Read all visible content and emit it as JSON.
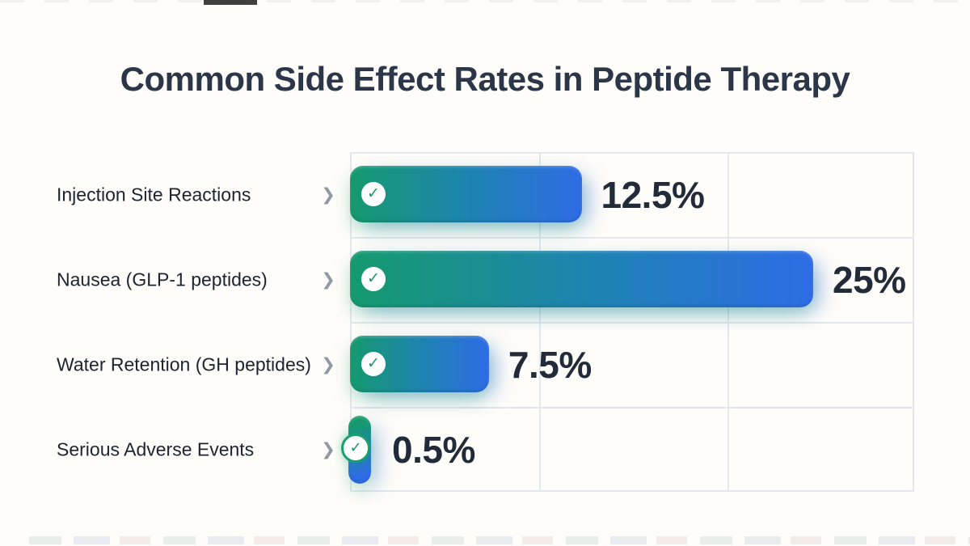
{
  "page": {
    "title": "Common Side Effect Rates in Peptide Therapy"
  },
  "colors": {
    "background": "#fffdf9",
    "title_text": "#2b3648",
    "category_text": "#1b2430",
    "value_text": "#212b39",
    "chevron": "#8f98a4",
    "grid_line": "#e4e8ec",
    "bar_gradient_start": "#159a6e",
    "bar_gradient_end": "#2e6ce6",
    "check_green": "#149a6e",
    "check_circle_bg": "#ffffff"
  },
  "icons": {
    "row_chevron": "❯",
    "bar_check": "✓"
  },
  "chart_data": {
    "type": "bar",
    "orientation": "horizontal",
    "title": "Common Side Effect Rates in Peptide Therapy",
    "categories": [
      "Injection Site Reactions",
      "Nausea (GLP-1 peptides)",
      "Water Retention (GH peptides)",
      "Serious Adverse Events"
    ],
    "values": [
      12.5,
      25,
      7.5,
      0.5
    ],
    "value_labels": [
      "12.5%",
      "25%",
      "7.5%",
      "0.5%"
    ],
    "unit": "%",
    "xlim": [
      0,
      30
    ],
    "grid": true,
    "legend": false,
    "bar_style": "gradient green-to-blue rounded pill with white check badge"
  }
}
